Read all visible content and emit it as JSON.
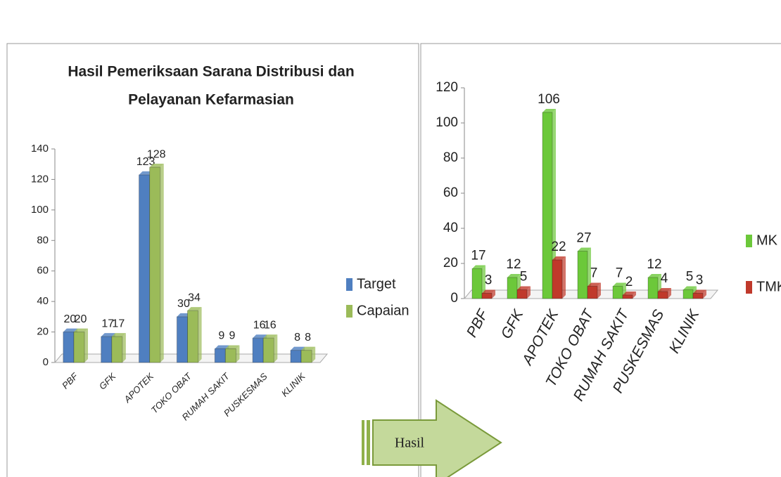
{
  "chart_data": [
    {
      "type": "bar",
      "title": [
        "Hasil Pemeriksaan Sarana Distribusi   dan",
        "Pelayanan Kefarmasian"
      ],
      "categories": [
        "PBF",
        "GFK",
        "APOTEK",
        "TOKO OBAT",
        "RUMAH SAKIT",
        "PUSKESMAS",
        "KLINIK"
      ],
      "series": [
        {
          "name": "Target",
          "color": "#4f7fc0",
          "values": [
            20,
            17,
            123,
            30,
            9,
            16,
            8
          ]
        },
        {
          "name": "Capaian",
          "color": "#9bbb59",
          "values": [
            20,
            17,
            128,
            34,
            9,
            16,
            8
          ]
        }
      ],
      "ylim": [
        0,
        140
      ],
      "yticks": [
        0,
        20,
        40,
        60,
        80,
        100,
        120,
        140
      ],
      "legend": "right",
      "data_labels": true
    },
    {
      "type": "bar",
      "categories": [
        "PBF",
        "GFK",
        "APOTEK",
        "TOKO OBAT",
        "RUMAH SAKIT",
        "PUSKESMAS",
        "KLINIK"
      ],
      "series": [
        {
          "name": "MK",
          "color": "#6cc83a",
          "values": [
            17,
            12,
            106,
            27,
            7,
            12,
            5
          ]
        },
        {
          "name": "TMK",
          "color": "#c0392b",
          "values": [
            3,
            5,
            22,
            7,
            2,
            4,
            3
          ]
        }
      ],
      "ylim": [
        0,
        120
      ],
      "yticks": [
        0,
        20,
        40,
        60,
        80,
        100,
        120
      ],
      "legend": "right",
      "data_labels": true
    }
  ],
  "arrow_label": "Hasil"
}
